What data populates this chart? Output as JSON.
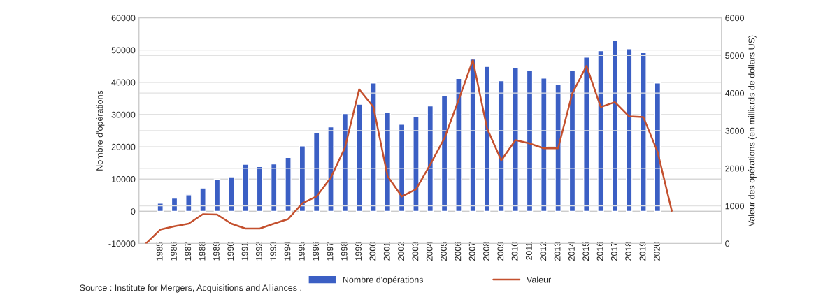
{
  "chart_data": {
    "type": "bar",
    "categories": [
      null,
      "1985",
      "1986",
      "1987",
      "1988",
      "1989",
      "1990",
      "1991",
      "1992",
      "1993",
      "1994",
      "1995",
      "1996",
      "1997",
      "1998",
      "1999",
      "2000",
      "2001",
      "2002",
      "2003",
      "2004",
      "2005",
      "2006",
      "2007",
      "2008",
      "2009",
      "2010",
      "2011",
      "2012",
      "2013",
      "2014",
      "2015",
      "2016",
      "2017",
      "2018",
      "2019",
      "2020",
      null,
      null,
      null,
      null
    ],
    "series": [
      {
        "name": "Nombre d'opérations",
        "color": "#3b5fc4",
        "values": [
          null,
          2500,
          4100,
          5100,
          7200,
          10000,
          10700,
          14600,
          13900,
          14700,
          16700,
          20300,
          24400,
          26200,
          30300,
          33200,
          39800,
          30700,
          27000,
          29300,
          32700,
          35800,
          41200,
          47200,
          44900,
          40500,
          44600,
          43800,
          41300,
          39400,
          43700,
          47800,
          49800,
          53100,
          50400,
          49200,
          39800,
          null,
          null,
          null,
          null
        ]
      },
      {
        "name": "Valeur",
        "type": "line",
        "axis": "y2",
        "color": "#c4502e",
        "values": [
          0,
          370,
          460,
          530,
          780,
          770,
          530,
          400,
          400,
          530,
          650,
          1070,
          1250,
          1750,
          2550,
          4100,
          3630,
          1790,
          1250,
          1440,
          2100,
          2800,
          3820,
          4870,
          3060,
          2210,
          2750,
          2660,
          2530,
          2530,
          3990,
          4720,
          3630,
          3760,
          3380,
          3360,
          2440,
          870,
          null,
          null,
          null
        ]
      }
    ],
    "ylabel": "Nombre d'opérations",
    "y2label": "Valeur des opérations (en milliards de dollars US)",
    "ylim": [
      -10000,
      60000
    ],
    "yticks": [
      -10000,
      0,
      10000,
      20000,
      30000,
      40000,
      50000,
      60000
    ],
    "y2lim": [
      0,
      6000
    ],
    "y2ticks": [
      0,
      1000,
      2000,
      3000,
      4000,
      5000,
      6000
    ],
    "grid": "y",
    "legend": "bottom",
    "annotations": [
      "Source : Institute for Mergers, Acquisitions and Alliances ."
    ]
  }
}
